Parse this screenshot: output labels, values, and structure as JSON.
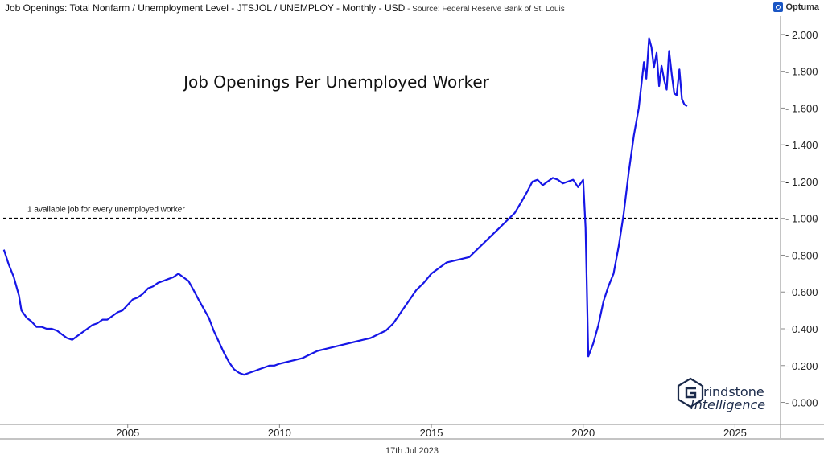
{
  "header": {
    "title": "Job Openings: Total Nonfarm / Unemployment Level - JTSJOL / UNEMPLOY - Monthly - USD",
    "source": " - Source: Federal Reserve Bank of St. Louis",
    "brand": "Optuma"
  },
  "date_label": "17th Jul 2023",
  "watermark": {
    "line1": "rindstone",
    "line2": "Intelligence"
  },
  "colors": {
    "line": "#1616e6",
    "reference": "#000000",
    "axis": "#888888",
    "logo": "#1b2a4a"
  },
  "chart_data": {
    "type": "line",
    "title": "Job Openings Per Unemployed Worker",
    "xlabel": "",
    "ylabel": "",
    "xlim": [
      2000.9,
      2026.5
    ],
    "ylim": [
      -0.12,
      2.1
    ],
    "x_ticks": [
      {
        "value": 2005,
        "label": "2005"
      },
      {
        "value": 2010,
        "label": "2010"
      },
      {
        "value": 2015,
        "label": "2015"
      },
      {
        "value": 2020,
        "label": "2020"
      },
      {
        "value": 2025,
        "label": "2025"
      }
    ],
    "y_ticks": [
      {
        "value": 0.0,
        "label": "0.000"
      },
      {
        "value": 0.2,
        "label": "0.200"
      },
      {
        "value": 0.4,
        "label": "0.400"
      },
      {
        "value": 0.6,
        "label": "0.600"
      },
      {
        "value": 0.8,
        "label": "0.800"
      },
      {
        "value": 1.0,
        "label": "1.000"
      },
      {
        "value": 1.2,
        "label": "1.200"
      },
      {
        "value": 1.4,
        "label": "1.400"
      },
      {
        "value": 1.6,
        "label": "1.600"
      },
      {
        "value": 1.8,
        "label": "1.800"
      },
      {
        "value": 2.0,
        "label": "2.000"
      }
    ],
    "reference_line": {
      "y": 1.0,
      "label": "1 available job for every unemployed worker"
    },
    "series": [
      {
        "x": [
          2000.92,
          2001.08,
          2001.25,
          2001.42,
          2001.5,
          2001.67,
          2001.83,
          2002.0,
          2002.17,
          2002.33,
          2002.5,
          2002.67,
          2002.83,
          2003.0,
          2003.17,
          2003.33,
          2003.5,
          2003.67,
          2003.83,
          2004.0,
          2004.17,
          2004.33,
          2004.5,
          2004.67,
          2004.83,
          2005.0,
          2005.17,
          2005.33,
          2005.5,
          2005.67,
          2005.83,
          2006.0,
          2006.17,
          2006.33,
          2006.5,
          2006.67,
          2006.83,
          2007.0,
          2007.17,
          2007.33,
          2007.5,
          2007.67,
          2007.83,
          2008.0,
          2008.17,
          2008.33,
          2008.5,
          2008.67,
          2008.83,
          2009.0,
          2009.17,
          2009.33,
          2009.5,
          2009.67,
          2009.83,
          2010.0,
          2010.25,
          2010.5,
          2010.75,
          2011.0,
          2011.25,
          2011.5,
          2011.75,
          2012.0,
          2012.25,
          2012.5,
          2012.75,
          2013.0,
          2013.25,
          2013.5,
          2013.75,
          2014.0,
          2014.25,
          2014.5,
          2014.75,
          2015.0,
          2015.25,
          2015.5,
          2015.75,
          2016.0,
          2016.25,
          2016.5,
          2016.75,
          2017.0,
          2017.25,
          2017.5,
          2017.75,
          2018.0,
          2018.17,
          2018.33,
          2018.5,
          2018.67,
          2018.83,
          2019.0,
          2019.17,
          2019.33,
          2019.5,
          2019.67,
          2019.83,
          2020.0,
          2020.08,
          2020.17,
          2020.33,
          2020.5,
          2020.67,
          2020.83,
          2021.0,
          2021.17,
          2021.33,
          2021.5,
          2021.67,
          2021.83,
          2022.0,
          2022.08,
          2022.17,
          2022.25,
          2022.33,
          2022.42,
          2022.5,
          2022.58,
          2022.67,
          2022.75,
          2022.83,
          2022.92,
          2023.0,
          2023.08,
          2023.17,
          2023.25,
          2023.33,
          2023.42
        ],
        "values": [
          0.83,
          0.75,
          0.68,
          0.58,
          0.5,
          0.46,
          0.44,
          0.41,
          0.41,
          0.4,
          0.4,
          0.39,
          0.37,
          0.35,
          0.34,
          0.36,
          0.38,
          0.4,
          0.42,
          0.43,
          0.45,
          0.45,
          0.47,
          0.49,
          0.5,
          0.53,
          0.56,
          0.57,
          0.59,
          0.62,
          0.63,
          0.65,
          0.66,
          0.67,
          0.68,
          0.7,
          0.68,
          0.66,
          0.61,
          0.56,
          0.51,
          0.46,
          0.39,
          0.33,
          0.27,
          0.22,
          0.18,
          0.16,
          0.15,
          0.16,
          0.17,
          0.18,
          0.19,
          0.2,
          0.2,
          0.21,
          0.22,
          0.23,
          0.24,
          0.26,
          0.28,
          0.29,
          0.3,
          0.31,
          0.32,
          0.33,
          0.34,
          0.35,
          0.37,
          0.39,
          0.43,
          0.49,
          0.55,
          0.61,
          0.65,
          0.7,
          0.73,
          0.76,
          0.77,
          0.78,
          0.79,
          0.83,
          0.87,
          0.91,
          0.95,
          0.99,
          1.03,
          1.1,
          1.15,
          1.2,
          1.21,
          1.18,
          1.2,
          1.22,
          1.21,
          1.19,
          1.2,
          1.21,
          1.17,
          1.21,
          0.95,
          0.25,
          0.32,
          0.42,
          0.55,
          0.63,
          0.7,
          0.85,
          1.02,
          1.25,
          1.45,
          1.6,
          1.85,
          1.76,
          1.98,
          1.93,
          1.82,
          1.9,
          1.72,
          1.83,
          1.75,
          1.7,
          1.91,
          1.78,
          1.68,
          1.67,
          1.81,
          1.65,
          1.62,
          1.61
        ]
      }
    ]
  }
}
